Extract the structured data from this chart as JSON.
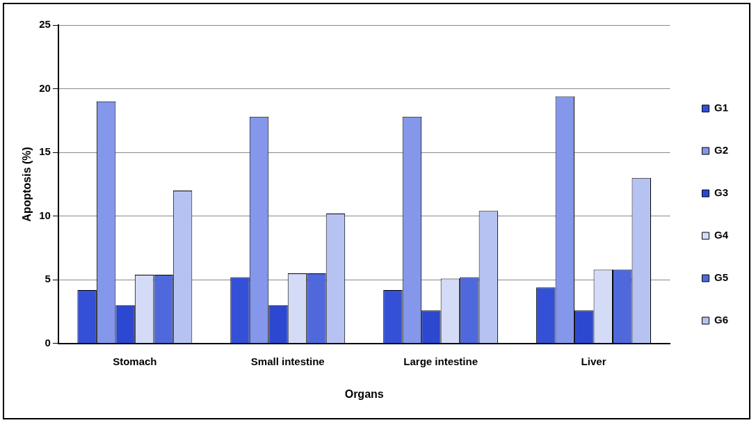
{
  "chart_data": {
    "type": "bar",
    "xlabel": "Organs",
    "ylabel": "Apoptosis (%)",
    "categories": [
      "Stomach",
      "Small intestine",
      "Large intestine",
      "Liver"
    ],
    "series": [
      {
        "name": "G1",
        "color": "#3350d6",
        "values": [
          4.2,
          5.2,
          4.2,
          4.4
        ]
      },
      {
        "name": "G2",
        "color": "#8497ea",
        "values": [
          19,
          17.8,
          17.8,
          19.4
        ]
      },
      {
        "name": "G3",
        "color": "#2c48d0",
        "values": [
          3,
          3,
          2.6,
          2.6
        ]
      },
      {
        "name": "G4",
        "color": "#d4dbf7",
        "values": [
          5.4,
          5.5,
          5.1,
          5.8
        ]
      },
      {
        "name": "G5",
        "color": "#4f69dc",
        "values": [
          5.4,
          5.5,
          5.2,
          5.8
        ]
      },
      {
        "name": "G6",
        "color": "#b6c3f2",
        "values": [
          12,
          10.2,
          10.4,
          13
        ]
      }
    ],
    "ylim": [
      0,
      25
    ],
    "yticks": [
      0,
      5,
      10,
      15,
      20,
      25
    ],
    "grid": "y",
    "legend": "right"
  }
}
